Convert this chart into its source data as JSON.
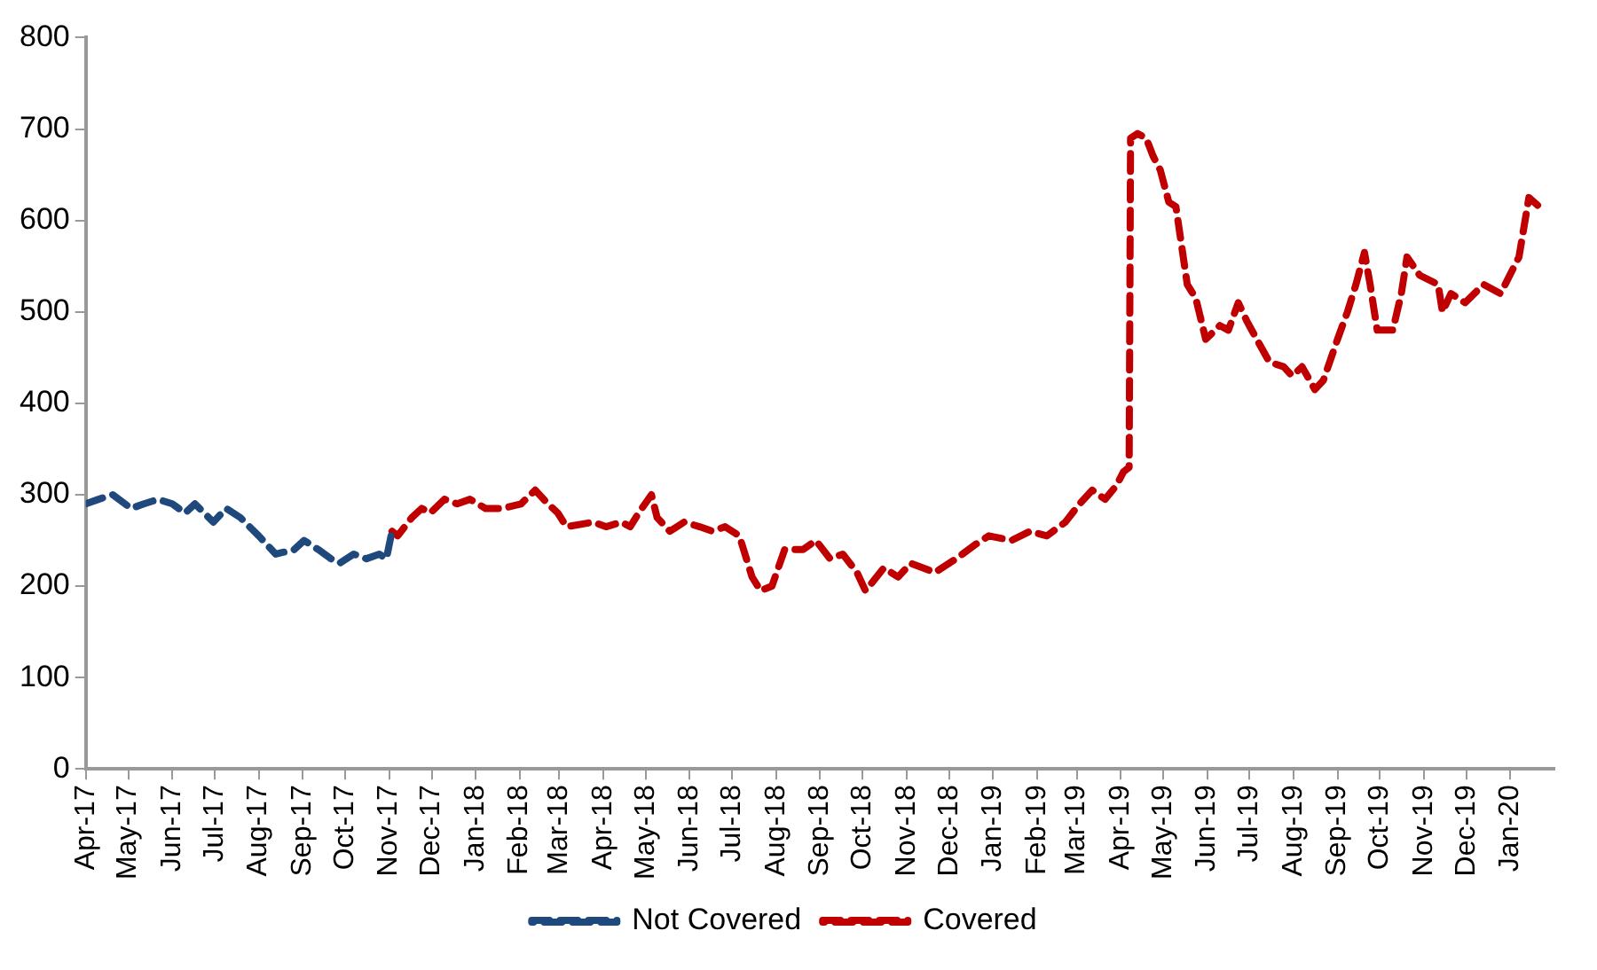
{
  "chart_data": {
    "type": "line",
    "line_style": "dashed",
    "marker": "none",
    "legend": "bottom",
    "grid": false,
    "xlim": [
      "2017-04-01",
      "2020-02-01"
    ],
    "ylim": [
      0,
      800
    ],
    "yticks": [
      0,
      100,
      200,
      300,
      400,
      500,
      600,
      700,
      800
    ],
    "xticks": [
      {
        "value": "2017-04-01",
        "label": "Apr-17"
      },
      {
        "value": "2017-05-01",
        "label": "May-17"
      },
      {
        "value": "2017-06-01",
        "label": "Jun-17"
      },
      {
        "value": "2017-07-01",
        "label": "Jul-17"
      },
      {
        "value": "2017-08-01",
        "label": "Aug-17"
      },
      {
        "value": "2017-09-01",
        "label": "Sep-17"
      },
      {
        "value": "2017-10-01",
        "label": "Oct-17"
      },
      {
        "value": "2017-11-01",
        "label": "Nov-17"
      },
      {
        "value": "2017-12-01",
        "label": "Dec-17"
      },
      {
        "value": "2018-01-01",
        "label": "Jan-18"
      },
      {
        "value": "2018-02-01",
        "label": "Feb-18"
      },
      {
        "value": "2018-03-01",
        "label": "Mar-18"
      },
      {
        "value": "2018-04-01",
        "label": "Apr-18"
      },
      {
        "value": "2018-05-01",
        "label": "May-18"
      },
      {
        "value": "2018-06-01",
        "label": "Jun-18"
      },
      {
        "value": "2018-07-01",
        "label": "Jul-18"
      },
      {
        "value": "2018-08-01",
        "label": "Aug-18"
      },
      {
        "value": "2018-09-01",
        "label": "Sep-18"
      },
      {
        "value": "2018-10-01",
        "label": "Oct-18"
      },
      {
        "value": "2018-11-01",
        "label": "Nov-18"
      },
      {
        "value": "2018-12-01",
        "label": "Dec-18"
      },
      {
        "value": "2019-01-01",
        "label": "Jan-19"
      },
      {
        "value": "2019-02-01",
        "label": "Feb-19"
      },
      {
        "value": "2019-03-01",
        "label": "Mar-19"
      },
      {
        "value": "2019-04-01",
        "label": "Apr-19"
      },
      {
        "value": "2019-05-01",
        "label": "May-19"
      },
      {
        "value": "2019-06-01",
        "label": "Jun-19"
      },
      {
        "value": "2019-07-01",
        "label": "Jul-19"
      },
      {
        "value": "2019-08-01",
        "label": "Aug-19"
      },
      {
        "value": "2019-09-01",
        "label": "Sep-19"
      },
      {
        "value": "2019-10-01",
        "label": "Oct-19"
      },
      {
        "value": "2019-11-01",
        "label": "Nov-19"
      },
      {
        "value": "2019-12-01",
        "label": "Dec-19"
      },
      {
        "value": "2020-01-01",
        "label": "Jan-20"
      }
    ],
    "series": [
      {
        "name": "Not Covered",
        "color": "#1f497d",
        "x": [
          "2017-04-01",
          "2017-04-10",
          "2017-04-20",
          "2017-05-03",
          "2017-05-12",
          "2017-05-22",
          "2017-06-01",
          "2017-06-10",
          "2017-06-17",
          "2017-06-30",
          "2017-07-09",
          "2017-07-19",
          "2017-08-01",
          "2017-08-13",
          "2017-08-26",
          "2017-09-02",
          "2017-09-12",
          "2017-09-21",
          "2017-09-27",
          "2017-10-07",
          "2017-10-16",
          "2017-10-25",
          "2017-10-30",
          "2017-11-03"
        ],
        "values": [
          290,
          295,
          300,
          285,
          290,
          295,
          290,
          280,
          290,
          270,
          285,
          275,
          255,
          235,
          240,
          250,
          240,
          230,
          225,
          235,
          230,
          235,
          230,
          260
        ]
      },
      {
        "name": "Covered",
        "color": "#c00000",
        "x": [
          "2017-11-03",
          "2017-11-07",
          "2017-11-17",
          "2017-11-24",
          "2017-11-30",
          "2017-12-10",
          "2017-12-19",
          "2017-12-28",
          "2018-01-08",
          "2018-01-20",
          "2018-02-02",
          "2018-02-12",
          "2018-02-21",
          "2018-02-28",
          "2018-03-06",
          "2018-03-25",
          "2018-04-03",
          "2018-04-14",
          "2018-04-20",
          "2018-04-26",
          "2018-05-05",
          "2018-05-09",
          "2018-05-18",
          "2018-05-28",
          "2018-06-08",
          "2018-06-17",
          "2018-06-26",
          "2018-07-06",
          "2018-07-15",
          "2018-07-21",
          "2018-07-29",
          "2018-08-07",
          "2018-08-20",
          "2018-08-29",
          "2018-09-08",
          "2018-09-17",
          "2018-09-27",
          "2018-10-03",
          "2018-10-16",
          "2018-10-26",
          "2018-11-04",
          "2018-11-21",
          "2018-12-06",
          "2018-12-19",
          "2018-12-29",
          "2019-01-14",
          "2019-01-27",
          "2019-02-08",
          "2019-02-21",
          "2019-03-03",
          "2019-03-12",
          "2019-03-21",
          "2019-03-29",
          "2019-04-03",
          "2019-04-07",
          "2019-04-08",
          "2019-04-13",
          "2019-04-19",
          "2019-04-24",
          "2019-04-29",
          "2019-05-05",
          "2019-05-10",
          "2019-05-18",
          "2019-05-24",
          "2019-05-31",
          "2019-06-10",
          "2019-06-16",
          "2019-06-23",
          "2019-06-29",
          "2019-07-06",
          "2019-07-15",
          "2019-07-25",
          "2019-07-31",
          "2019-08-07",
          "2019-08-16",
          "2019-08-22",
          "2019-09-01",
          "2019-09-08",
          "2019-09-14",
          "2019-09-20",
          "2019-09-24",
          "2019-09-29",
          "2019-10-10",
          "2019-10-16",
          "2019-10-20",
          "2019-10-29",
          "2019-11-11",
          "2019-11-14",
          "2019-11-20",
          "2019-11-30",
          "2019-12-13",
          "2019-12-25",
          "2020-01-07",
          "2020-01-14",
          "2020-01-25"
        ],
        "values": [
          260,
          255,
          275,
          285,
          280,
          295,
          290,
          295,
          285,
          285,
          290,
          305,
          290,
          280,
          265,
          270,
          265,
          270,
          265,
          280,
          300,
          275,
          260,
          270,
          265,
          260,
          265,
          255,
          210,
          195,
          200,
          240,
          240,
          250,
          230,
          235,
          215,
          195,
          220,
          210,
          225,
          215,
          230,
          245,
          255,
          250,
          260,
          255,
          270,
          290,
          305,
          295,
          310,
          325,
          330,
          690,
          695,
          690,
          670,
          655,
          620,
          615,
          530,
          515,
          470,
          485,
          480,
          510,
          490,
          470,
          445,
          440,
          430,
          440,
          415,
          425,
          470,
          500,
          530,
          565,
          530,
          480,
          480,
          520,
          560,
          540,
          530,
          500,
          520,
          510,
          530,
          520,
          560,
          625,
          610
        ]
      }
    ]
  }
}
